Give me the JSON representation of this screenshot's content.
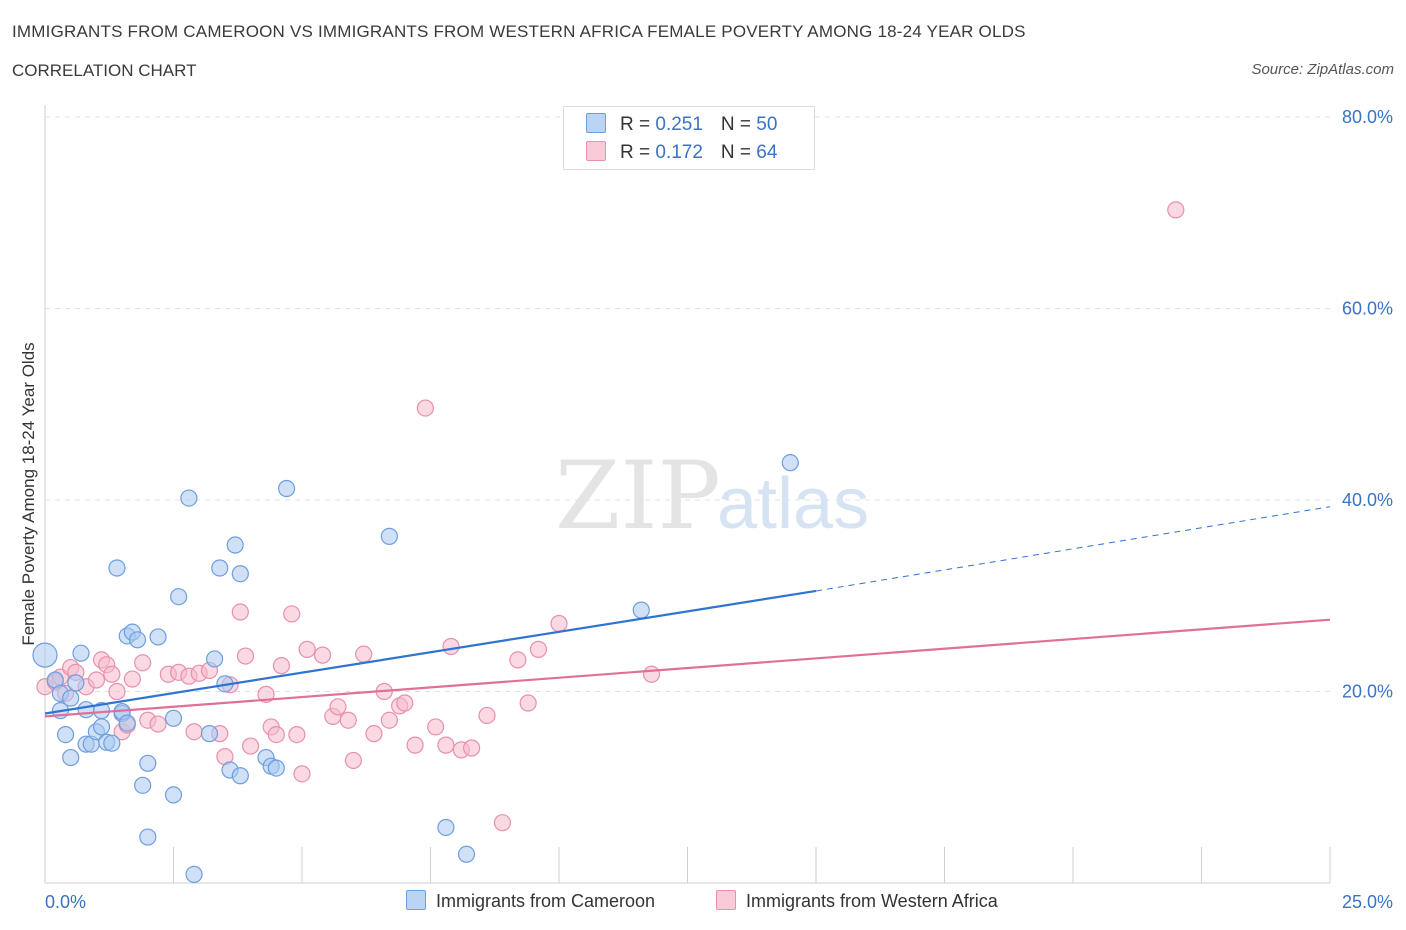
{
  "header": {
    "title": "IMMIGRANTS FROM CAMEROON VS IMMIGRANTS FROM WESTERN AFRICA FEMALE POVERTY AMONG 18-24 YEAR OLDS",
    "subtitle": "CORRELATION CHART",
    "source": "Source: ZipAtlas.com"
  },
  "legend": {
    "cameroon": {
      "r_label": "R = ",
      "r_value": "0.251",
      "n_label": "N = ",
      "n_value": "50"
    },
    "western_africa": {
      "r_label": "R = ",
      "r_value": "0.172",
      "n_label": "N = ",
      "n_value": "64"
    }
  },
  "watermark": {
    "zip": "ZIP",
    "atlas": "atlas"
  },
  "colors": {
    "cameroon_fill": "#a9c8f0",
    "cameroon_stroke": "#6d9ee0",
    "cameroon_line": "#2f74d0",
    "western_fill": "#f6b9cc",
    "western_stroke": "#e890ac",
    "western_line": "#e07098",
    "tick_label": "#3a73c4"
  },
  "chart_data": {
    "type": "scatter",
    "ylabel": "Female Poverty Among 18-24 Year Olds",
    "xlim": [
      0,
      25
    ],
    "ylim": [
      0,
      80
    ],
    "x_tick_labels": [
      {
        "value": 0,
        "label": "0.0%"
      },
      {
        "value": 25,
        "label": "25.0%"
      }
    ],
    "y_tick_labels": [
      {
        "value": 20,
        "label": "20.0%"
      },
      {
        "value": 40,
        "label": "40.0%"
      },
      {
        "value": 60,
        "label": "60.0%"
      },
      {
        "value": 80,
        "label": "80.0%"
      }
    ],
    "grid": true,
    "legend_position": "top-center",
    "series": [
      {
        "name": "Immigrants from Cameroon",
        "color": "#a9c8f0",
        "points": [
          [
            0.0,
            23.8
          ],
          [
            0.2,
            21.2
          ],
          [
            0.3,
            19.8
          ],
          [
            0.3,
            18.0
          ],
          [
            0.4,
            15.5
          ],
          [
            0.5,
            19.3
          ],
          [
            0.5,
            13.1
          ],
          [
            0.6,
            20.9
          ],
          [
            0.7,
            24.0
          ],
          [
            0.8,
            18.1
          ],
          [
            0.8,
            14.5
          ],
          [
            0.9,
            14.5
          ],
          [
            1.0,
            15.8
          ],
          [
            1.1,
            16.3
          ],
          [
            1.1,
            18.0
          ],
          [
            1.2,
            14.7
          ],
          [
            1.3,
            14.6
          ],
          [
            1.4,
            32.9
          ],
          [
            1.5,
            17.7
          ],
          [
            1.5,
            17.9
          ],
          [
            1.6,
            16.7
          ],
          [
            1.6,
            25.8
          ],
          [
            1.7,
            26.2
          ],
          [
            1.8,
            25.4
          ],
          [
            1.9,
            10.2
          ],
          [
            2.0,
            4.8
          ],
          [
            2.0,
            12.5
          ],
          [
            2.2,
            25.7
          ],
          [
            2.5,
            17.2
          ],
          [
            2.5,
            9.2
          ],
          [
            2.6,
            29.9
          ],
          [
            2.8,
            40.2
          ],
          [
            2.9,
            0.9
          ],
          [
            3.2,
            15.6
          ],
          [
            3.3,
            23.4
          ],
          [
            3.4,
            32.9
          ],
          [
            3.5,
            20.8
          ],
          [
            3.6,
            11.8
          ],
          [
            3.7,
            35.3
          ],
          [
            3.8,
            32.3
          ],
          [
            3.8,
            11.2
          ],
          [
            4.3,
            13.1
          ],
          [
            4.4,
            12.2
          ],
          [
            4.5,
            12.0
          ],
          [
            4.7,
            41.2
          ],
          [
            6.7,
            36.2
          ],
          [
            7.8,
            5.8
          ],
          [
            8.2,
            3.0
          ],
          [
            11.6,
            28.5
          ],
          [
            14.5,
            43.9
          ]
        ]
      },
      {
        "name": "Immigrants from Western Africa",
        "color": "#f6b9cc",
        "points": [
          [
            0.0,
            20.5
          ],
          [
            0.2,
            21.0
          ],
          [
            0.3,
            21.5
          ],
          [
            0.4,
            19.8
          ],
          [
            0.5,
            22.5
          ],
          [
            0.6,
            22.0
          ],
          [
            0.8,
            20.5
          ],
          [
            1.0,
            21.2
          ],
          [
            1.1,
            23.3
          ],
          [
            1.2,
            22.8
          ],
          [
            1.3,
            21.8
          ],
          [
            1.4,
            20.0
          ],
          [
            1.5,
            15.8
          ],
          [
            1.6,
            16.5
          ],
          [
            1.7,
            21.3
          ],
          [
            1.9,
            23.0
          ],
          [
            2.0,
            17.0
          ],
          [
            2.2,
            16.6
          ],
          [
            2.4,
            21.8
          ],
          [
            2.6,
            22.0
          ],
          [
            2.8,
            21.6
          ],
          [
            2.9,
            15.8
          ],
          [
            3.0,
            21.9
          ],
          [
            3.2,
            22.2
          ],
          [
            3.4,
            15.6
          ],
          [
            3.5,
            13.2
          ],
          [
            3.6,
            20.7
          ],
          [
            3.8,
            28.3
          ],
          [
            3.9,
            23.7
          ],
          [
            4.0,
            14.3
          ],
          [
            4.3,
            19.7
          ],
          [
            4.4,
            16.3
          ],
          [
            4.5,
            15.5
          ],
          [
            4.6,
            22.7
          ],
          [
            4.8,
            28.1
          ],
          [
            4.9,
            15.5
          ],
          [
            5.0,
            11.4
          ],
          [
            5.1,
            24.4
          ],
          [
            5.4,
            23.8
          ],
          [
            5.6,
            17.4
          ],
          [
            5.7,
            18.4
          ],
          [
            5.9,
            17.0
          ],
          [
            6.0,
            12.8
          ],
          [
            6.2,
            23.9
          ],
          [
            6.4,
            15.6
          ],
          [
            6.6,
            20.0
          ],
          [
            6.7,
            17.0
          ],
          [
            6.9,
            18.5
          ],
          [
            7.0,
            18.8
          ],
          [
            7.2,
            14.4
          ],
          [
            7.4,
            49.6
          ],
          [
            7.6,
            16.3
          ],
          [
            7.8,
            14.4
          ],
          [
            7.9,
            24.7
          ],
          [
            8.1,
            13.9
          ],
          [
            8.3,
            14.1
          ],
          [
            8.6,
            17.5
          ],
          [
            8.9,
            6.3
          ],
          [
            9.2,
            23.3
          ],
          [
            9.4,
            18.8
          ],
          [
            9.6,
            24.4
          ],
          [
            10.0,
            27.1
          ],
          [
            11.8,
            21.8
          ],
          [
            22.0,
            70.3
          ]
        ]
      }
    ],
    "trend_lines": [
      {
        "series": "Immigrants from Cameroon",
        "solid": [
          [
            0,
            17.7
          ],
          [
            15.0,
            30.5
          ]
        ],
        "dashed": [
          [
            15.0,
            30.5
          ],
          [
            25.0,
            39.3
          ]
        ]
      },
      {
        "series": "Immigrants from Western Africa",
        "solid": [
          [
            0,
            17.4
          ],
          [
            25.0,
            27.5
          ]
        ]
      }
    ]
  }
}
